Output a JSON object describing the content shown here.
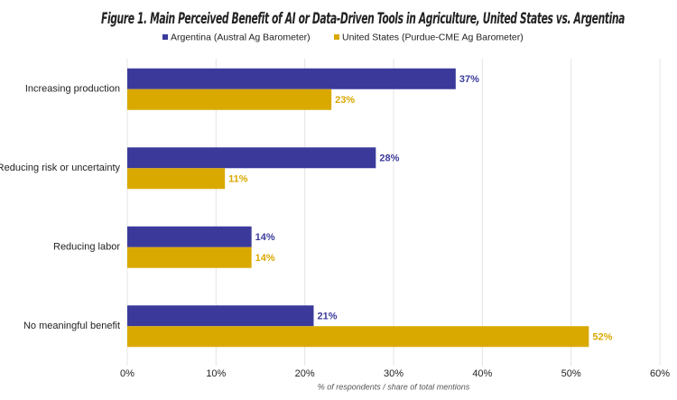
{
  "chart_data": {
    "type": "bar",
    "orientation": "horizontal",
    "title": "Figure 1. Main Perceived Benefit of AI or Data-Driven Tools in Agriculture, United States vs. Argentina",
    "x_label": "% of respondents / share of total mentions",
    "categories": [
      "Increasing production",
      "Reducing risk or uncertainty",
      "Reducing labor",
      "No meaningful benefit"
    ],
    "series": [
      {
        "name": "Argentina (Austral Ag Barometer)",
        "color": "#3b3a9b",
        "values": [
          37,
          28,
          14,
          21
        ],
        "value_labels": [
          "37%",
          "28%",
          "14%",
          "21%"
        ]
      },
      {
        "name": "United States (Purdue-CME Ag Barometer)",
        "color": "#d9a900",
        "values": [
          23,
          11,
          14,
          52
        ],
        "value_labels": [
          "23%",
          "11%",
          "14%",
          "52%"
        ]
      }
    ],
    "xlim": [
      0,
      60
    ],
    "xticks": [
      {
        "value": 0,
        "label": "0%"
      },
      {
        "value": 10,
        "label": "10%"
      },
      {
        "value": 20,
        "label": "20%"
      },
      {
        "value": 30,
        "label": "30%"
      },
      {
        "value": 40,
        "label": "40%"
      },
      {
        "value": 50,
        "label": "50%"
      },
      {
        "value": 60,
        "label": "60%"
      }
    ],
    "grid": true
  }
}
